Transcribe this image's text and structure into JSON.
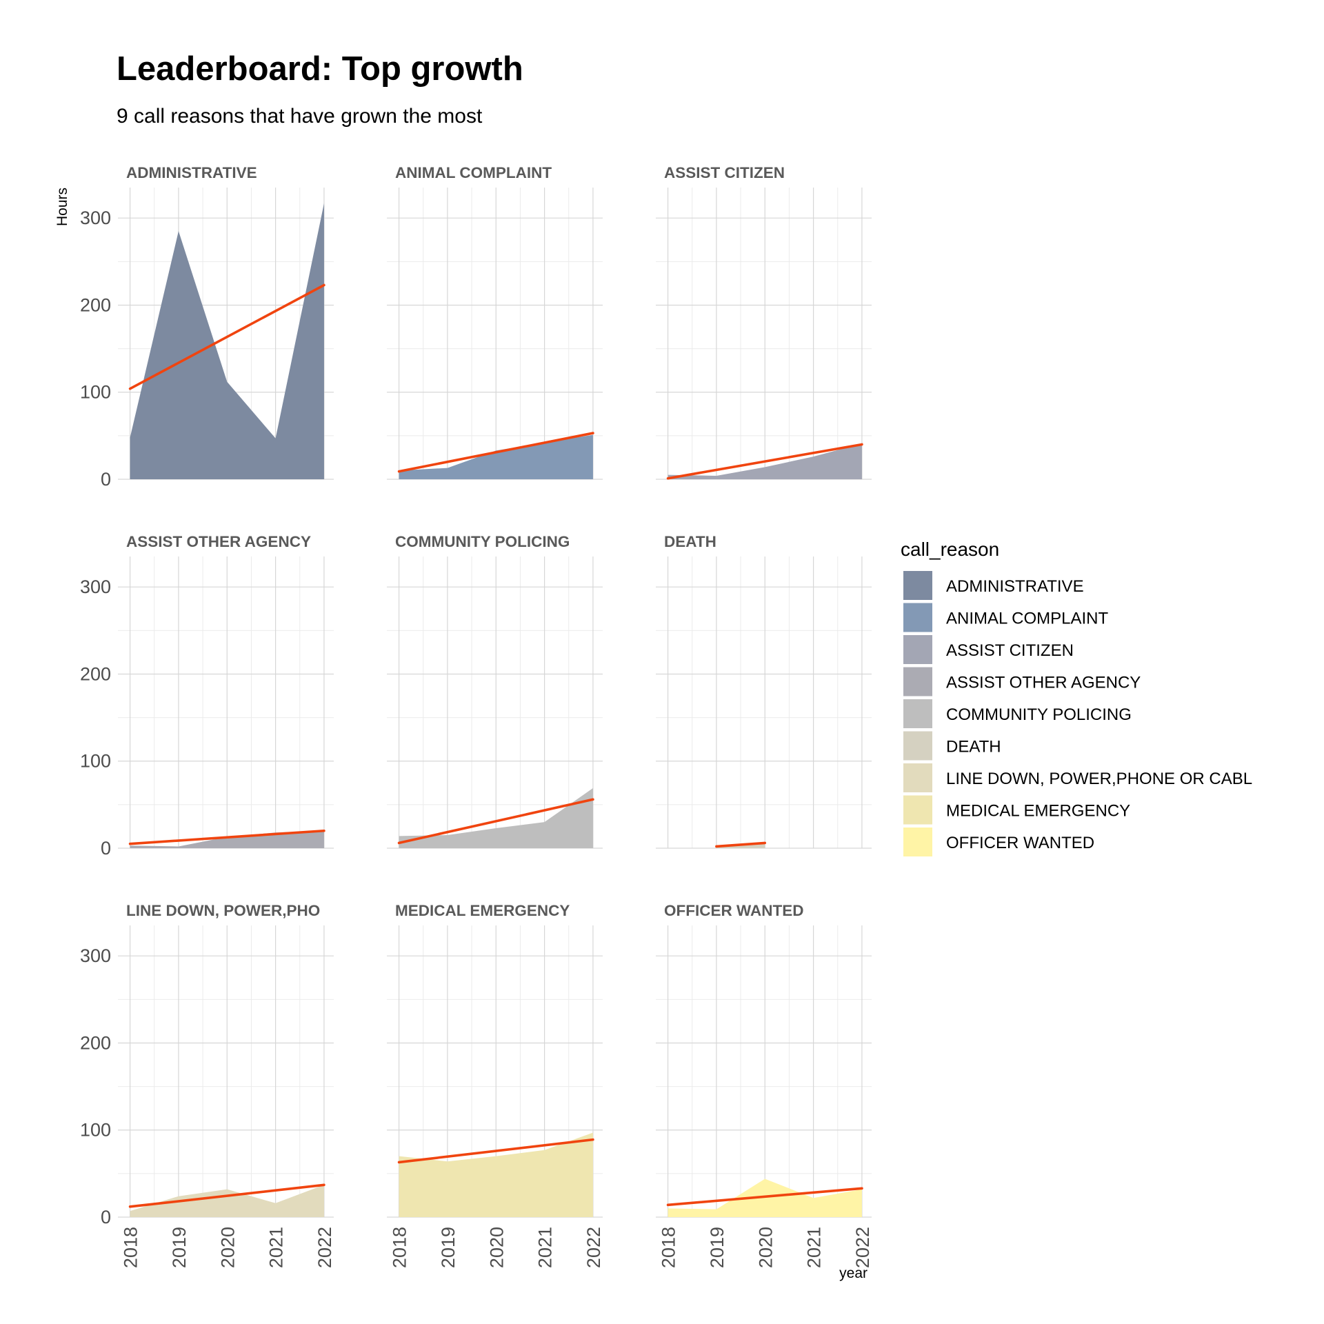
{
  "chart_data": {
    "type": "area",
    "title": "Leaderboard: Top growth",
    "subtitle": "9 call reasons that have grown the most",
    "xlabel": "year",
    "ylabel": "Hours",
    "legend_title": "call_reason",
    "legend_position": "right",
    "grid": true,
    "x_ticks": [
      2018,
      2019,
      2020,
      2021,
      2022
    ],
    "y_ticks": [
      0,
      100,
      200,
      300
    ],
    "ylim": [
      0,
      335
    ],
    "trend_color": "#f0440f",
    "series": [
      {
        "name": "ADMINISTRATIVE",
        "strip": "ADMINISTRATIVE",
        "color": "#7d8aa0",
        "x": [
          2018,
          2019,
          2020,
          2021,
          2022
        ],
        "values": [
          48,
          285,
          112,
          47,
          317
        ],
        "trend": [
          104,
          223
        ]
      },
      {
        "name": "ANIMAL COMPLAINT",
        "strip": "ANIMAL COMPLAINT",
        "color": "#8399b5",
        "x": [
          2018,
          2019,
          2020,
          2021,
          2022
        ],
        "values": [
          10,
          13,
          33,
          42,
          51
        ],
        "trend": [
          9,
          53
        ]
      },
      {
        "name": "ASSIST CITIZEN",
        "strip": "ASSIST CITIZEN",
        "color": "#a3a6b4",
        "x": [
          2018,
          2019,
          2020,
          2021,
          2022
        ],
        "values": [
          5,
          4,
          14,
          26,
          41
        ],
        "trend": [
          1,
          40
        ]
      },
      {
        "name": "ASSIST OTHER AGENCY",
        "strip": "ASSIST OTHER AGENCY",
        "color": "#ababb3",
        "x": [
          2018,
          2019,
          2020,
          2021,
          2022
        ],
        "values": [
          3,
          2,
          13,
          18,
          20
        ],
        "trend": [
          5,
          20
        ]
      },
      {
        "name": "COMMUNITY POLICING",
        "strip": "COMMUNITY POLICING",
        "color": "#bebebe",
        "x": [
          2018,
          2019,
          2020,
          2021,
          2022
        ],
        "values": [
          14,
          15,
          23,
          30,
          69
        ],
        "trend": [
          6,
          56
        ]
      },
      {
        "name": "DEATH",
        "strip": "DEATH",
        "color": "#d5d1c1",
        "x": [
          2019,
          2020
        ],
        "values": [
          3,
          7
        ],
        "trend_x": [
          2019,
          2020
        ],
        "trend": [
          2,
          6
        ]
      },
      {
        "name": "LINE DOWN, POWER,PHONE OR CABL",
        "strip": "LINE DOWN, POWER,PHO",
        "color": "#e2dbbd",
        "x": [
          2018,
          2019,
          2020,
          2021,
          2022
        ],
        "values": [
          7,
          24,
          32,
          16,
          37
        ],
        "trend": [
          12,
          37
        ]
      },
      {
        "name": "MEDICAL EMERGENCY",
        "strip": "MEDICAL EMERGENCY",
        "color": "#efe6b0",
        "x": [
          2018,
          2019,
          2020,
          2021,
          2022
        ],
        "values": [
          70,
          64,
          70,
          77,
          97
        ],
        "trend": [
          63,
          89
        ]
      },
      {
        "name": "OFFICER WANTED",
        "strip": "OFFICER WANTED",
        "color": "#fff4a6",
        "x": [
          2018,
          2019,
          2020,
          2021,
          2022
        ],
        "values": [
          10,
          9,
          44,
          22,
          32
        ],
        "trend": [
          14,
          33
        ]
      }
    ]
  }
}
